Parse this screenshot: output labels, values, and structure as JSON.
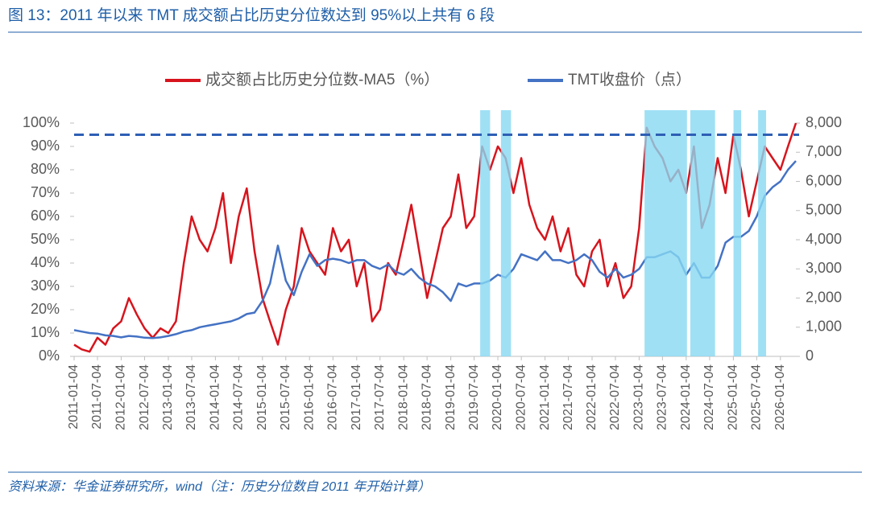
{
  "chart_data": {
    "type": "line",
    "title": "图 13：2011 年以来 TMT 成交额占比历史分位数达到 95%以上共有 6 段",
    "source": "资料来源：华金证券研究所，wind（注：历史分位数自 2011 年开始计算）",
    "x": [
      "2011-01-04",
      "2011-03-04",
      "2011-05-04",
      "2011-07-04",
      "2011-09-04",
      "2011-11-04",
      "2012-01-04",
      "2012-03-04",
      "2012-05-04",
      "2012-07-04",
      "2012-09-04",
      "2012-11-04",
      "2013-01-04",
      "2013-03-04",
      "2013-05-04",
      "2013-07-04",
      "2013-09-04",
      "2013-11-04",
      "2014-01-04",
      "2014-03-04",
      "2014-05-04",
      "2014-07-04",
      "2014-09-04",
      "2014-11-04",
      "2015-01-04",
      "2015-03-04",
      "2015-05-04",
      "2015-07-04",
      "2015-09-04",
      "2015-11-04",
      "2016-01-04",
      "2016-03-04",
      "2016-05-04",
      "2016-07-04",
      "2016-09-04",
      "2016-11-04",
      "2017-01-04",
      "2017-03-04",
      "2017-05-04",
      "2017-07-04",
      "2017-09-04",
      "2017-11-04",
      "2018-01-04",
      "2018-03-04",
      "2018-05-04",
      "2018-07-04",
      "2018-09-04",
      "2018-11-04",
      "2019-01-04",
      "2019-03-04",
      "2019-05-04",
      "2019-07-04",
      "2019-09-04",
      "2019-11-04",
      "2020-01-04",
      "2020-03-04",
      "2020-05-04",
      "2020-07-04",
      "2020-09-04",
      "2020-11-04",
      "2021-01-04",
      "2021-03-04",
      "2021-05-04",
      "2021-07-04",
      "2021-09-04",
      "2021-11-04",
      "2022-01-04",
      "2022-03-04",
      "2022-05-04",
      "2022-07-04",
      "2022-09-04",
      "2022-11-04",
      "2023-01-04",
      "2023-03-04",
      "2023-05-04",
      "2023-07-04",
      "2023-09-04",
      "2023-11-04",
      "2024-01-04",
      "2024-03-04",
      "2024-05-04",
      "2024-07-04",
      "2024-09-04",
      "2024-11-04",
      "2025-01-04",
      "2025-03-04",
      "2025-05-04",
      "2025-07-04",
      "2025-09-04",
      "2025-11-04",
      "2026-01-04",
      "2026-03-04",
      "2026-05-04"
    ],
    "series": [
      {
        "name": "成交额占比历史分位数-MA5（%）",
        "color": "#d7141d",
        "axis": "y",
        "values": [
          5,
          3,
          2,
          8,
          5,
          12,
          15,
          25,
          18,
          12,
          8,
          12,
          10,
          15,
          40,
          60,
          50,
          45,
          55,
          70,
          40,
          60,
          72,
          45,
          25,
          15,
          5,
          20,
          30,
          55,
          45,
          40,
          35,
          55,
          45,
          50,
          30,
          40,
          15,
          20,
          40,
          35,
          50,
          65,
          45,
          25,
          40,
          55,
          60,
          78,
          55,
          60,
          90,
          80,
          90,
          85,
          70,
          85,
          65,
          55,
          50,
          60,
          45,
          55,
          35,
          30,
          45,
          50,
          30,
          40,
          25,
          30,
          55,
          98,
          90,
          85,
          75,
          80,
          70,
          90,
          55,
          65,
          85,
          70,
          95,
          80,
          60,
          75,
          90,
          85,
          80,
          90,
          100
        ]
      },
      {
        "name": "TMT收盘价（点）",
        "color": "#4472c4",
        "axis": "y2",
        "values": [
          900,
          850,
          800,
          780,
          720,
          700,
          650,
          700,
          680,
          640,
          630,
          650,
          700,
          760,
          850,
          900,
          1000,
          1050,
          1100,
          1150,
          1200,
          1300,
          1450,
          1500,
          1900,
          2500,
          3800,
          2600,
          2100,
          2900,
          3500,
          3100,
          3300,
          3350,
          3300,
          3200,
          3300,
          3300,
          3100,
          3000,
          3150,
          2900,
          2800,
          3000,
          2700,
          2500,
          2400,
          2200,
          1900,
          2500,
          2400,
          2500,
          2500,
          2600,
          2800,
          2700,
          3000,
          3500,
          3400,
          3300,
          3600,
          3300,
          3300,
          3200,
          3300,
          3500,
          3300,
          2900,
          2700,
          3000,
          2700,
          2800,
          3000,
          3400,
          3400,
          3500,
          3600,
          3400,
          2800,
          3200,
          2700,
          2700,
          3100,
          3900,
          4100,
          4100,
          4300,
          4800,
          5500,
          5800,
          6000,
          6400,
          6700
        ]
      }
    ],
    "highlights": [
      {
        "start": "2019-08-20",
        "end": "2019-11-05"
      },
      {
        "start": "2020-01-28",
        "end": "2020-04-15"
      },
      {
        "start": "2023-02-15",
        "end": "2024-01-10"
      },
      {
        "start": "2024-02-05",
        "end": "2024-08-15"
      },
      {
        "start": "2025-01-05",
        "end": "2025-03-05"
      },
      {
        "start": "2025-07-15",
        "end": "2025-09-15"
      }
    ],
    "highlight_color": "#87d8f2",
    "threshold": 95,
    "xlim": [
      "2011-01-04",
      "2026-05-04"
    ],
    "xticks": [
      "2011-01-04",
      "2011-07-04",
      "2012-01-04",
      "2012-07-04",
      "2013-01-04",
      "2013-07-04",
      "2014-01-04",
      "2014-07-04",
      "2015-01-04",
      "2015-07-04",
      "2016-01-04",
      "2016-07-04",
      "2017-01-04",
      "2017-07-04",
      "2018-01-04",
      "2018-07-04",
      "2019-01-04",
      "2019-07-04",
      "2020-01-04",
      "2020-07-04",
      "2021-01-04",
      "2021-07-04",
      "2022-01-04",
      "2022-07-04",
      "2023-01-04",
      "2023-07-04",
      "2024-01-04",
      "2024-07-04",
      "2025-01-04",
      "2025-07-04",
      "2026-01-04"
    ],
    "ylim": [
      0,
      100
    ],
    "yticks": [
      {
        "value": 0,
        "label": "0%"
      },
      {
        "value": 10,
        "label": "10%"
      },
      {
        "value": 20,
        "label": "20%"
      },
      {
        "value": 30,
        "label": "30%"
      },
      {
        "value": 40,
        "label": "40%"
      },
      {
        "value": 50,
        "label": "50%"
      },
      {
        "value": 60,
        "label": "60%"
      },
      {
        "value": 70,
        "label": "70%"
      },
      {
        "value": 80,
        "label": "80%"
      },
      {
        "value": 90,
        "label": "90%"
      },
      {
        "value": 100,
        "label": "100%"
      }
    ],
    "y2lim": [
      0,
      8000
    ],
    "y2ticks": [
      0,
      {
        "value": 1000,
        "label": "1,000"
      },
      {
        "value": 2000,
        "label": "2,000"
      },
      {
        "value": 3000,
        "label": "3,000"
      },
      {
        "value": 4000,
        "label": "4,000"
      },
      {
        "value": 5000,
        "label": "5,000"
      },
      {
        "value": 6000,
        "label": "6,000"
      },
      {
        "value": 7000,
        "label": "7,000"
      },
      {
        "value": 8000,
        "label": "8,000"
      }
    ],
    "legend": "top"
  }
}
